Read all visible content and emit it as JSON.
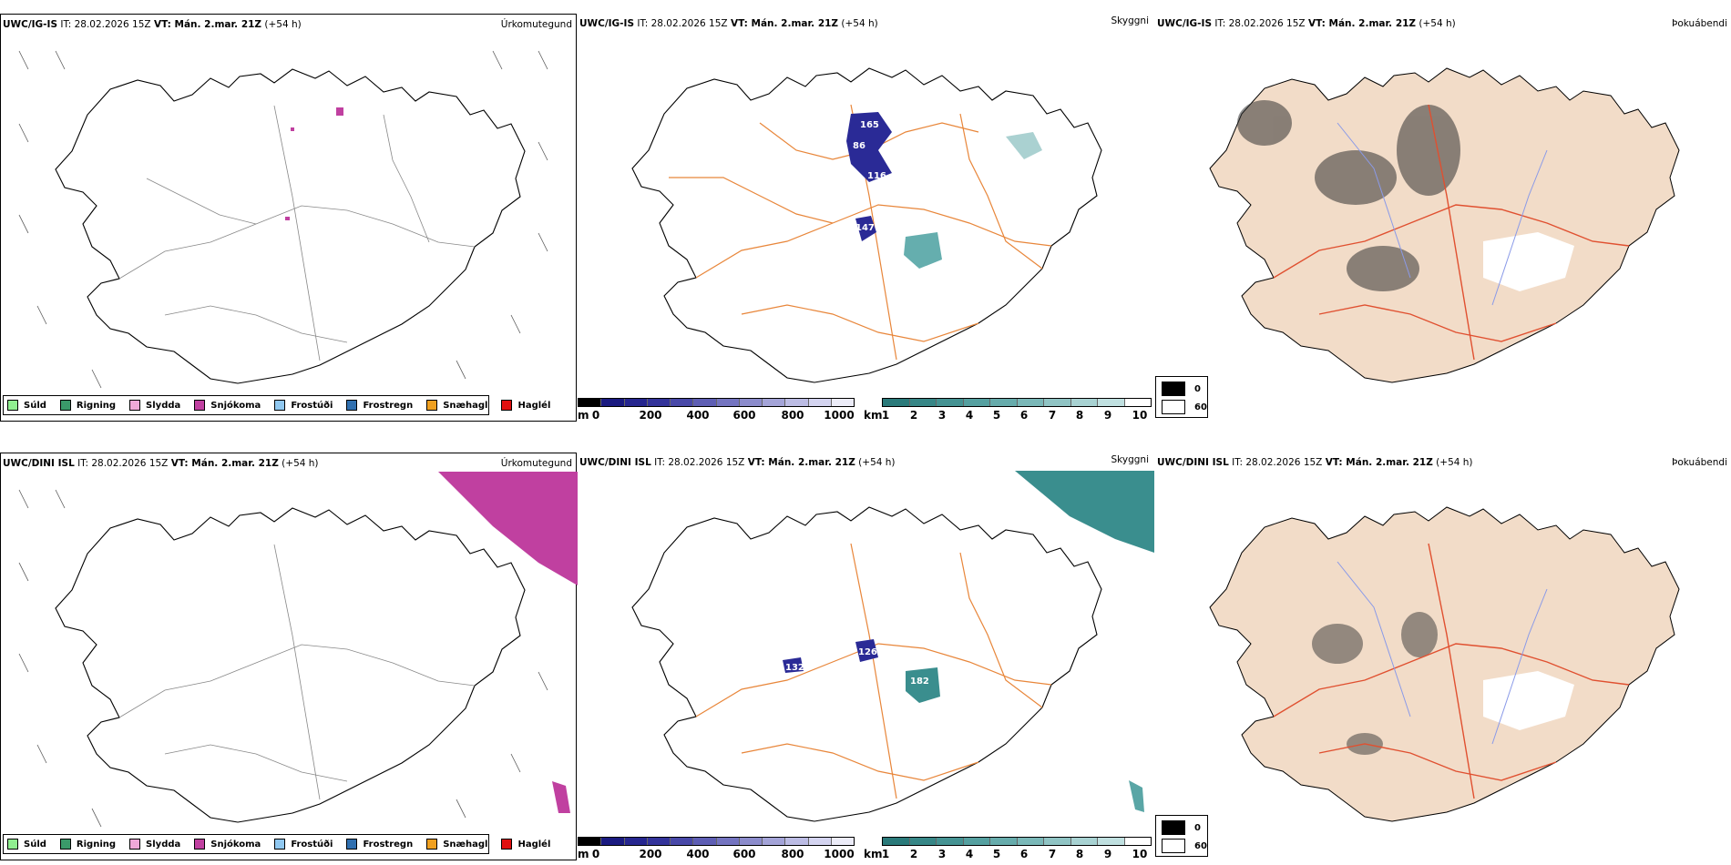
{
  "rows": [
    {
      "id": "top",
      "model": "UWC/IG-IS",
      "it": "IT: 28.02.2026 15Z",
      "vt": "VT: Mán. 2.mar. 21Z",
      "lead": "(+54 h)"
    },
    {
      "id": "bottom",
      "model": "UWC/DINI ISL",
      "it": "IT: 28.02.2026 15Z",
      "vt": "VT: Mán. 2.mar. 21Z",
      "lead": "(+54 h)"
    }
  ],
  "panel_titles": {
    "precip": "Úrkomutegund",
    "visibility": "Skyggni",
    "fog": "Þokuábendi"
  },
  "precip_legend": [
    {
      "label": "Súld",
      "color": "#90ee90"
    },
    {
      "label": "Rigning",
      "color": "#3a9a6a"
    },
    {
      "label": "Slydda",
      "color": "#f0a8d8"
    },
    {
      "label": "Snjókoma",
      "color": "#c040a0"
    },
    {
      "label": "Frostúði",
      "color": "#90c8f0"
    },
    {
      "label": "Frostregn",
      "color": "#3070b0"
    },
    {
      "label": "Snæhagl",
      "color": "#f0a020"
    },
    {
      "label": "Haglél",
      "color": "#e01010"
    }
  ],
  "ceiling_colorbar": {
    "unit": "m",
    "ticks": [
      "0",
      "200",
      "400",
      "600",
      "800",
      "1000"
    ],
    "colors": [
      "#000000",
      "#1a1a80",
      "#26268f",
      "#33339a",
      "#4848a8",
      "#5e5eb4",
      "#7474c0",
      "#8c8ccc",
      "#a4a4d8",
      "#bcbce4",
      "#d4d4f0",
      "#ececf8"
    ]
  },
  "visibility_colorbar": {
    "unit": "km",
    "ticks": [
      "1",
      "2",
      "3",
      "4",
      "5",
      "6",
      "7",
      "8",
      "9",
      "10"
    ],
    "colors": [
      "#2a7a7a",
      "#378787",
      "#459393",
      "#55a0a0",
      "#67acac",
      "#7ab8b8",
      "#90c4c4",
      "#a8d2d2",
      "#c0e0e0",
      "#ffffff"
    ]
  },
  "fog_key": [
    {
      "label": "0",
      "color": "#000000"
    },
    {
      "label": "60",
      "color": "#ffffff"
    }
  ],
  "ceiling_labels": {
    "top": [
      "165",
      "86",
      "116",
      "147"
    ],
    "bottom": [
      "126",
      "132",
      "182"
    ]
  }
}
